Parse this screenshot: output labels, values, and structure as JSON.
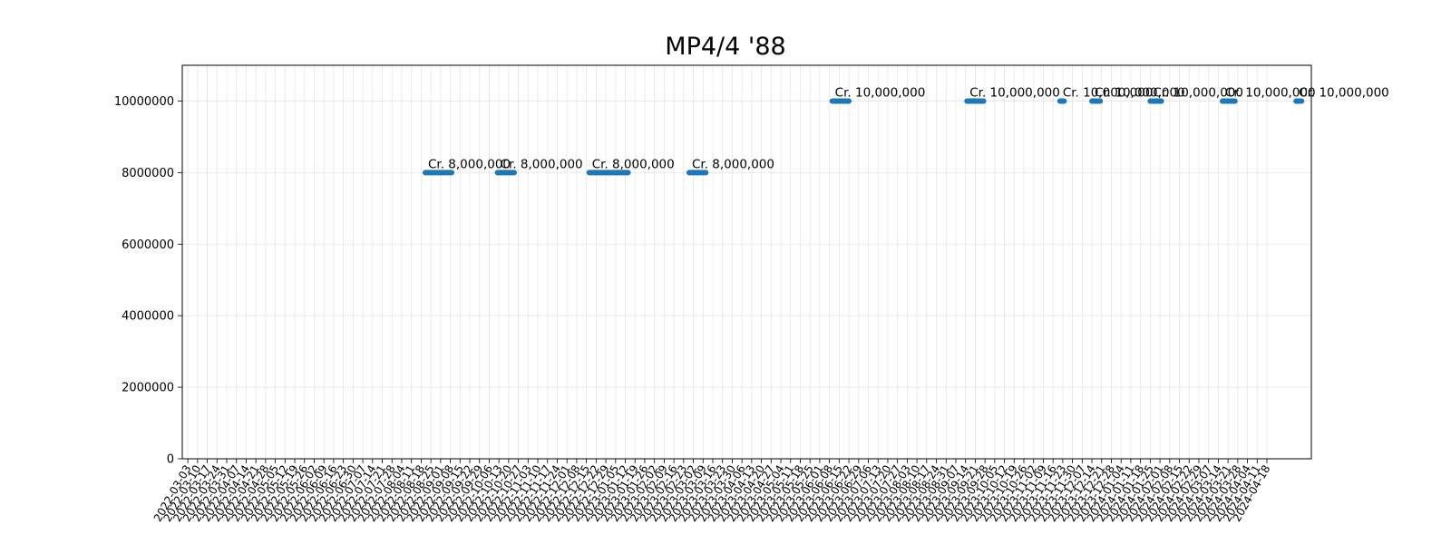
{
  "chart_data": {
    "type": "scatter",
    "title": "MP4/4 '88",
    "xlabel": "",
    "ylabel": "",
    "ylim": [
      0,
      11000000
    ],
    "yticks": [
      0,
      2000000,
      4000000,
      6000000,
      8000000,
      10000000
    ],
    "grid": true,
    "marker_color": "#1f77b4",
    "x_tick_labels": [
      "2022-03-03",
      "2022-03-10",
      "2022-03-17",
      "2022-03-24",
      "2022-03-31",
      "2022-04-07",
      "2022-04-14",
      "2022-04-21",
      "2022-04-28",
      "2022-05-05",
      "2022-05-12",
      "2022-05-19",
      "2022-05-26",
      "2022-06-02",
      "2022-06-09",
      "2022-06-16",
      "2022-06-23",
      "2022-06-30",
      "2022-07-07",
      "2022-07-14",
      "2022-07-21",
      "2022-07-28",
      "2022-08-04",
      "2022-08-11",
      "2022-08-18",
      "2022-08-25",
      "2022-09-01",
      "2022-09-08",
      "2022-09-15",
      "2022-09-22",
      "2022-09-29",
      "2022-10-06",
      "2022-10-13",
      "2022-10-20",
      "2022-10-27",
      "2022-11-03",
      "2022-11-10",
      "2022-11-17",
      "2022-11-24",
      "2022-12-01",
      "2022-12-08",
      "2022-12-15",
      "2022-12-22",
      "2022-12-29",
      "2023-01-05",
      "2023-01-12",
      "2023-01-19",
      "2023-01-26",
      "2023-02-02",
      "2023-02-09",
      "2023-02-16",
      "2023-02-23",
      "2023-03-02",
      "2023-03-09",
      "2023-03-16",
      "2023-03-23",
      "2023-03-30",
      "2023-04-06",
      "2023-04-13",
      "2023-04-20",
      "2023-04-27",
      "2023-05-04",
      "2023-05-11",
      "2023-05-18",
      "2023-05-25",
      "2023-06-01",
      "2023-06-08",
      "2023-06-15",
      "2023-06-22",
      "2023-06-29",
      "2023-07-06",
      "2023-07-13",
      "2023-07-20",
      "2023-07-27",
      "2023-08-03",
      "2023-08-10",
      "2023-08-17",
      "2023-08-24",
      "2023-08-31",
      "2023-09-07",
      "2023-09-14",
      "2023-09-21",
      "2023-09-28",
      "2023-10-05",
      "2023-10-12",
      "2023-10-19",
      "2023-10-26",
      "2023-11-02",
      "2023-11-09",
      "2023-11-16",
      "2023-11-23",
      "2023-11-30",
      "2023-12-07",
      "2023-12-14",
      "2023-12-21",
      "2023-12-28",
      "2024-01-04",
      "2024-01-11",
      "2024-01-18",
      "2024-01-25",
      "2024-02-01",
      "2024-02-08",
      "2024-02-15",
      "2024-02-22",
      "2024-02-29",
      "2024-03-07",
      "2024-03-14",
      "2024-03-21",
      "2024-03-28",
      "2024-04-04",
      "2024-04-11",
      "2024-04-18"
    ],
    "segments": [
      {
        "start": "2022-08-21",
        "end": "2022-09-09",
        "value": 8000000,
        "label": "Cr. 8,000,000"
      },
      {
        "start": "2022-10-12",
        "end": "2022-10-24",
        "value": 8000000,
        "label": "Cr. 8,000,000"
      },
      {
        "start": "2022-12-17",
        "end": "2023-01-14",
        "value": 8000000,
        "label": "Cr. 8,000,000"
      },
      {
        "start": "2023-02-27",
        "end": "2023-03-11",
        "value": 8000000,
        "label": "Cr. 8,000,000"
      },
      {
        "start": "2023-06-10",
        "end": "2023-06-22",
        "value": 10000000,
        "label": "Cr. 10,000,000"
      },
      {
        "start": "2023-09-15",
        "end": "2023-09-27",
        "value": 10000000,
        "label": "Cr. 10,000,000"
      },
      {
        "start": "2023-11-21",
        "end": "2023-11-24",
        "value": 10000000,
        "label": "Cr. 10,000,000"
      },
      {
        "start": "2023-12-14",
        "end": "2023-12-20",
        "value": 10000000,
        "label": "Cr. 10,000,000"
      },
      {
        "start": "2024-01-25",
        "end": "2024-02-02",
        "value": 10000000,
        "label": "Cr. 10,000,000"
      },
      {
        "start": "2024-03-17",
        "end": "2024-03-26",
        "value": 10000000,
        "label": "Cr. 10,000,000"
      },
      {
        "start": "2024-05-09",
        "end": "2024-05-13",
        "value": 10000000,
        "label": "Cr. 10,000,000"
      }
    ]
  }
}
